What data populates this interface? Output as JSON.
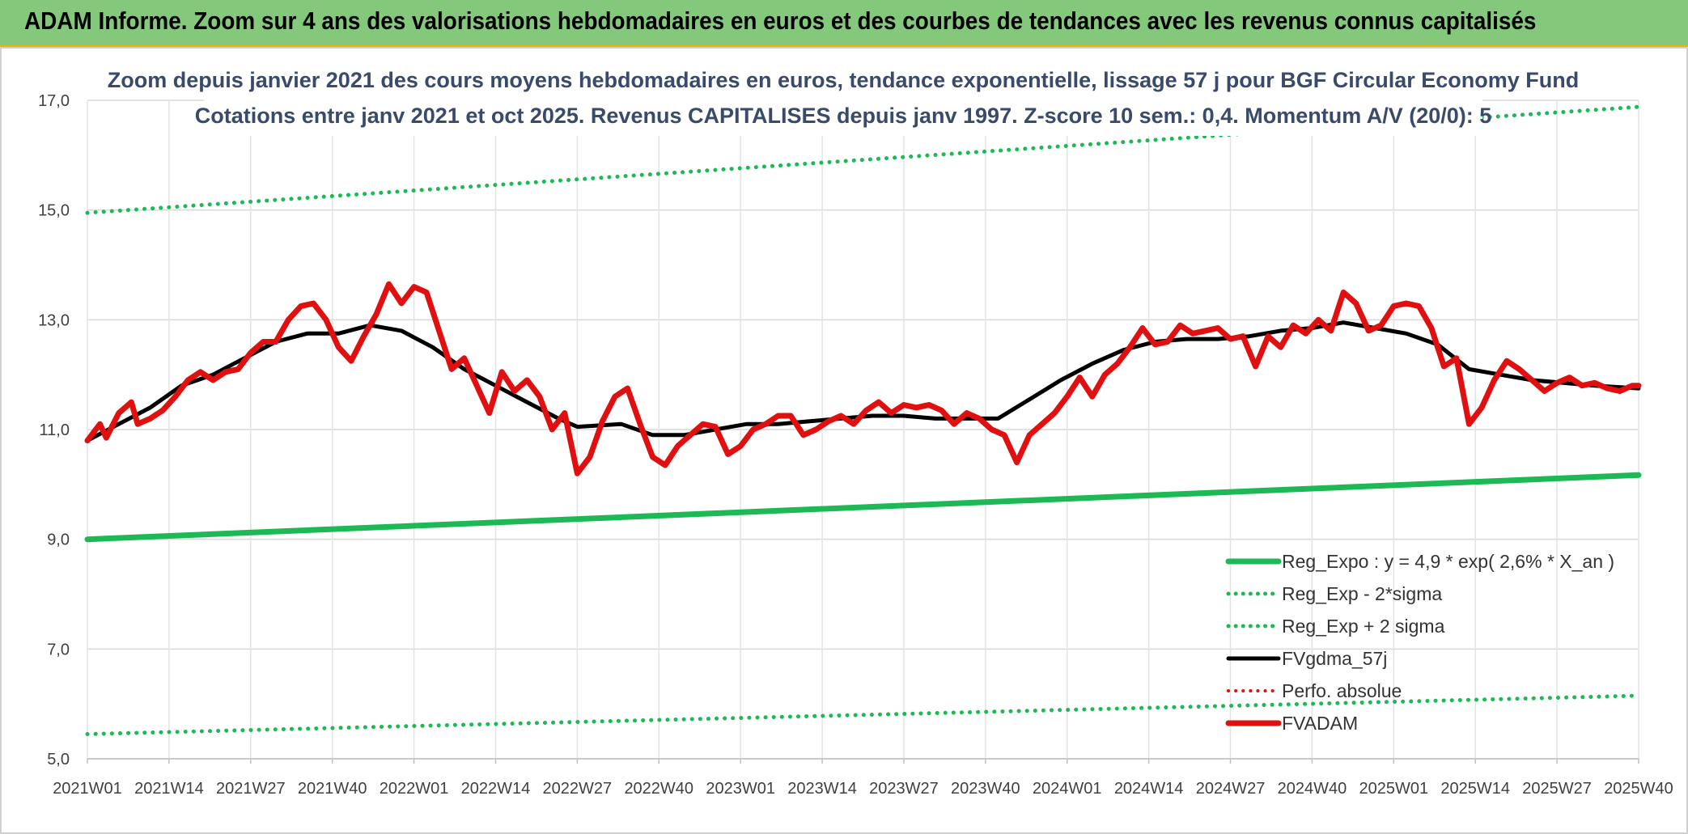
{
  "header": {
    "banner": "ADAM Informe. Zoom sur 4 ans des valorisations hebdomadaires en euros et des courbes de tendances avec les revenus connus capitalisés"
  },
  "chart_data": {
    "type": "line",
    "title_line1": "Zoom depuis janvier 2021 des cours moyens hebdomadaires en euros, tendance exponentielle, lissage 57 j pour BGF Circular Economy Fund",
    "title_line2": "Cotations entre janv 2021 et oct 2025. Revenus CAPITALISES depuis janv 1997. Z-score 10 sem.: 0,4. Momentum A/V (20/0): 5",
    "ylim": [
      5,
      17
    ],
    "yticks": [
      "5,0",
      "7,0",
      "9,0",
      "11,0",
      "13,0",
      "15,0",
      "17,0"
    ],
    "xlim": [
      0,
      248
    ],
    "xticks": [
      {
        "i": 0,
        "label": "2021W01"
      },
      {
        "i": 13,
        "label": "2021W14"
      },
      {
        "i": 26,
        "label": "2021W27"
      },
      {
        "i": 39,
        "label": "2021W40"
      },
      {
        "i": 52,
        "label": "2022W01"
      },
      {
        "i": 65,
        "label": "2022W14"
      },
      {
        "i": 78,
        "label": "2022W27"
      },
      {
        "i": 91,
        "label": "2022W40"
      },
      {
        "i": 104,
        "label": "2023W01"
      },
      {
        "i": 117,
        "label": "2023W14"
      },
      {
        "i": 130,
        "label": "2023W27"
      },
      {
        "i": 143,
        "label": "2023W40"
      },
      {
        "i": 156,
        "label": "2024W01"
      },
      {
        "i": 169,
        "label": "2024W14"
      },
      {
        "i": 182,
        "label": "2024W27"
      },
      {
        "i": 195,
        "label": "2024W40"
      },
      {
        "i": 208,
        "label": "2025W01"
      },
      {
        "i": 221,
        "label": "2025W14"
      },
      {
        "i": 234,
        "label": "2025W27"
      },
      {
        "i": 247,
        "label": "2025W40"
      }
    ],
    "grid": true,
    "legend_position": "bottom-right",
    "series": [
      {
        "name": "Reg_Expo : y = 4,9 * exp( 2,6% *  X_an )",
        "color": "#1db954",
        "style": "solid",
        "width": 7,
        "x": [
          0,
          247
        ],
        "values": [
          9.0,
          10.17
        ]
      },
      {
        "name": "Reg_Exp - 2*sigma",
        "color": "#1db954",
        "style": "dotted",
        "width": 5,
        "x": [
          0,
          247
        ],
        "values": [
          5.45,
          6.15
        ]
      },
      {
        "name": "Reg_Exp + 2 sigma",
        "color": "#1db954",
        "style": "dotted",
        "width": 5,
        "x": [
          0,
          247
        ],
        "values": [
          14.95,
          16.88
        ]
      },
      {
        "name": "FVgdma_57j",
        "color": "#000000",
        "style": "solid",
        "width": 5,
        "x": [
          0,
          5,
          10,
          15,
          20,
          25,
          30,
          35,
          40,
          45,
          50,
          55,
          60,
          65,
          70,
          75,
          78,
          85,
          90,
          95,
          100,
          105,
          110,
          115,
          120,
          125,
          130,
          135,
          140,
          145,
          150,
          155,
          160,
          165,
          170,
          175,
          180,
          185,
          190,
          195,
          200,
          205,
          210,
          215,
          220,
          225,
          230,
          235,
          240,
          247
        ],
        "values": [
          10.8,
          11.1,
          11.4,
          11.8,
          12.0,
          12.3,
          12.6,
          12.75,
          12.75,
          12.9,
          12.8,
          12.5,
          12.1,
          11.8,
          11.5,
          11.2,
          11.05,
          11.1,
          10.9,
          10.9,
          11.0,
          11.1,
          11.1,
          11.15,
          11.2,
          11.25,
          11.25,
          11.2,
          11.2,
          11.2,
          11.55,
          11.9,
          12.2,
          12.45,
          12.6,
          12.65,
          12.65,
          12.7,
          12.8,
          12.85,
          12.95,
          12.85,
          12.75,
          12.55,
          12.1,
          12.0,
          11.9,
          11.85,
          11.8,
          11.75
        ]
      },
      {
        "name": "Perfo. absolue",
        "color": "#e01010",
        "style": "dotted",
        "width": 4,
        "x": [],
        "values": []
      },
      {
        "name": "FVADAM",
        "color": "#e01010",
        "style": "solid",
        "width": 7,
        "x": [
          0,
          2,
          3,
          5,
          7,
          8,
          10,
          12,
          14,
          16,
          18,
          20,
          22,
          24,
          26,
          28,
          30,
          32,
          34,
          36,
          38,
          40,
          42,
          44,
          46,
          48,
          50,
          52,
          54,
          56,
          58,
          60,
          62,
          64,
          66,
          68,
          70,
          72,
          74,
          76,
          78,
          80,
          82,
          84,
          86,
          88,
          90,
          92,
          94,
          96,
          98,
          100,
          102,
          104,
          106,
          108,
          110,
          112,
          114,
          116,
          118,
          120,
          122,
          124,
          126,
          128,
          130,
          132,
          134,
          136,
          138,
          140,
          142,
          144,
          146,
          148,
          150,
          152,
          154,
          156,
          158,
          160,
          162,
          164,
          166,
          168,
          170,
          172,
          174,
          176,
          178,
          180,
          182,
          184,
          186,
          188,
          190,
          192,
          194,
          196,
          198,
          200,
          202,
          204,
          206,
          208,
          210,
          212,
          214,
          216,
          218,
          220,
          222,
          224,
          226,
          228,
          230,
          232,
          234,
          236,
          238,
          240,
          242,
          244,
          246,
          247
        ],
        "values": [
          10.8,
          11.1,
          10.85,
          11.3,
          11.5,
          11.1,
          11.2,
          11.35,
          11.6,
          11.9,
          12.05,
          11.9,
          12.05,
          12.1,
          12.4,
          12.6,
          12.6,
          13.0,
          13.25,
          13.3,
          13.0,
          12.5,
          12.25,
          12.7,
          13.1,
          13.65,
          13.3,
          13.6,
          13.5,
          12.8,
          12.1,
          12.3,
          11.8,
          11.3,
          12.05,
          11.7,
          11.9,
          11.6,
          11.0,
          11.3,
          10.2,
          10.5,
          11.15,
          11.6,
          11.75,
          11.1,
          10.5,
          10.35,
          10.7,
          10.9,
          11.1,
          11.05,
          10.55,
          10.7,
          11.0,
          11.1,
          11.25,
          11.25,
          10.9,
          11.0,
          11.15,
          11.25,
          11.1,
          11.35,
          11.5,
          11.3,
          11.45,
          11.4,
          11.45,
          11.35,
          11.1,
          11.3,
          11.2,
          11.0,
          10.9,
          10.4,
          10.9,
          11.1,
          11.3,
          11.6,
          11.95,
          11.6,
          12.0,
          12.2,
          12.5,
          12.85,
          12.55,
          12.6,
          12.9,
          12.75,
          12.8,
          12.85,
          12.65,
          12.7,
          12.15,
          12.7,
          12.5,
          12.9,
          12.75,
          13.0,
          12.8,
          13.5,
          13.3,
          12.8,
          12.9,
          13.25,
          13.3,
          13.25,
          12.85,
          12.15,
          12.3,
          11.1,
          11.4,
          11.9,
          12.25,
          12.1,
          11.9,
          11.7,
          11.85,
          11.95,
          11.8,
          11.85,
          11.75,
          11.7,
          11.8,
          11.8
        ]
      }
    ]
  }
}
